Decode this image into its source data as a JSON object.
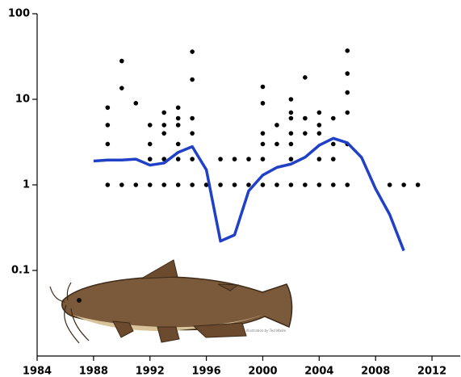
{
  "chart_data": {
    "type": "scatter",
    "xlim": [
      1984,
      2014
    ],
    "xticks": [
      1984,
      1988,
      1992,
      1996,
      2000,
      2004,
      2008,
      2012
    ],
    "ylim": [
      0.01,
      100
    ],
    "yticks": [
      0.1,
      1,
      10,
      100
    ],
    "ylog": true,
    "image_credit": "Illustration by Ted Walke",
    "series": [
      {
        "type": "scatter",
        "color": "#000000",
        "x": [
          1989,
          1989,
          1989,
          1989,
          1990,
          1990,
          1990,
          1991,
          1991,
          1992,
          1992,
          1992,
          1992,
          1993,
          1993,
          1993,
          1993,
          1993,
          1994,
          1994,
          1994,
          1994,
          1994,
          1994,
          1995,
          1995,
          1995,
          1995,
          1995,
          1995,
          1996,
          1997,
          1997,
          1998,
          1998,
          1999,
          1999,
          2000,
          2000,
          2000,
          2000,
          2000,
          2000,
          2001,
          2001,
          2001,
          2002,
          2002,
          2002,
          2002,
          2002,
          2002,
          2002,
          2003,
          2003,
          2003,
          2003,
          2004,
          2004,
          2004,
          2004,
          2004,
          2005,
          2005,
          2005,
          2005,
          2006,
          2006,
          2006,
          2006,
          2006,
          2006,
          2009,
          2010,
          2011
        ],
        "values": [
          8,
          5,
          3,
          1,
          28,
          13.5,
          1,
          9,
          1,
          5,
          3,
          2,
          1,
          7,
          5,
          4,
          2,
          1,
          8,
          6,
          5,
          3,
          2,
          1,
          36,
          17,
          6,
          4,
          2,
          1,
          1,
          2,
          1,
          2,
          1,
          2,
          1,
          14,
          9,
          4,
          3,
          2,
          1,
          5,
          3,
          1,
          10,
          7,
          6,
          4,
          3,
          2,
          1,
          18,
          6,
          4,
          1,
          7,
          5,
          4,
          2,
          1,
          6,
          3,
          2,
          1,
          37,
          20,
          12,
          7,
          3,
          1,
          1,
          1,
          1
        ]
      },
      {
        "type": "line",
        "color": "#2040c8",
        "x": [
          1988,
          1989,
          1990,
          1991,
          1992,
          1993,
          1994,
          1995,
          1996,
          1997,
          1998,
          1999,
          2000,
          2001,
          2002,
          2003,
          2004,
          2005,
          2006,
          2007,
          2008,
          2009,
          2010
        ],
        "values": [
          1.9,
          1.95,
          1.95,
          2.0,
          1.7,
          1.8,
          2.4,
          2.8,
          1.5,
          0.22,
          0.26,
          0.85,
          1.3,
          1.6,
          1.75,
          2.1,
          2.9,
          3.5,
          3.1,
          2.1,
          0.9,
          0.45,
          0.17
        ]
      }
    ]
  }
}
